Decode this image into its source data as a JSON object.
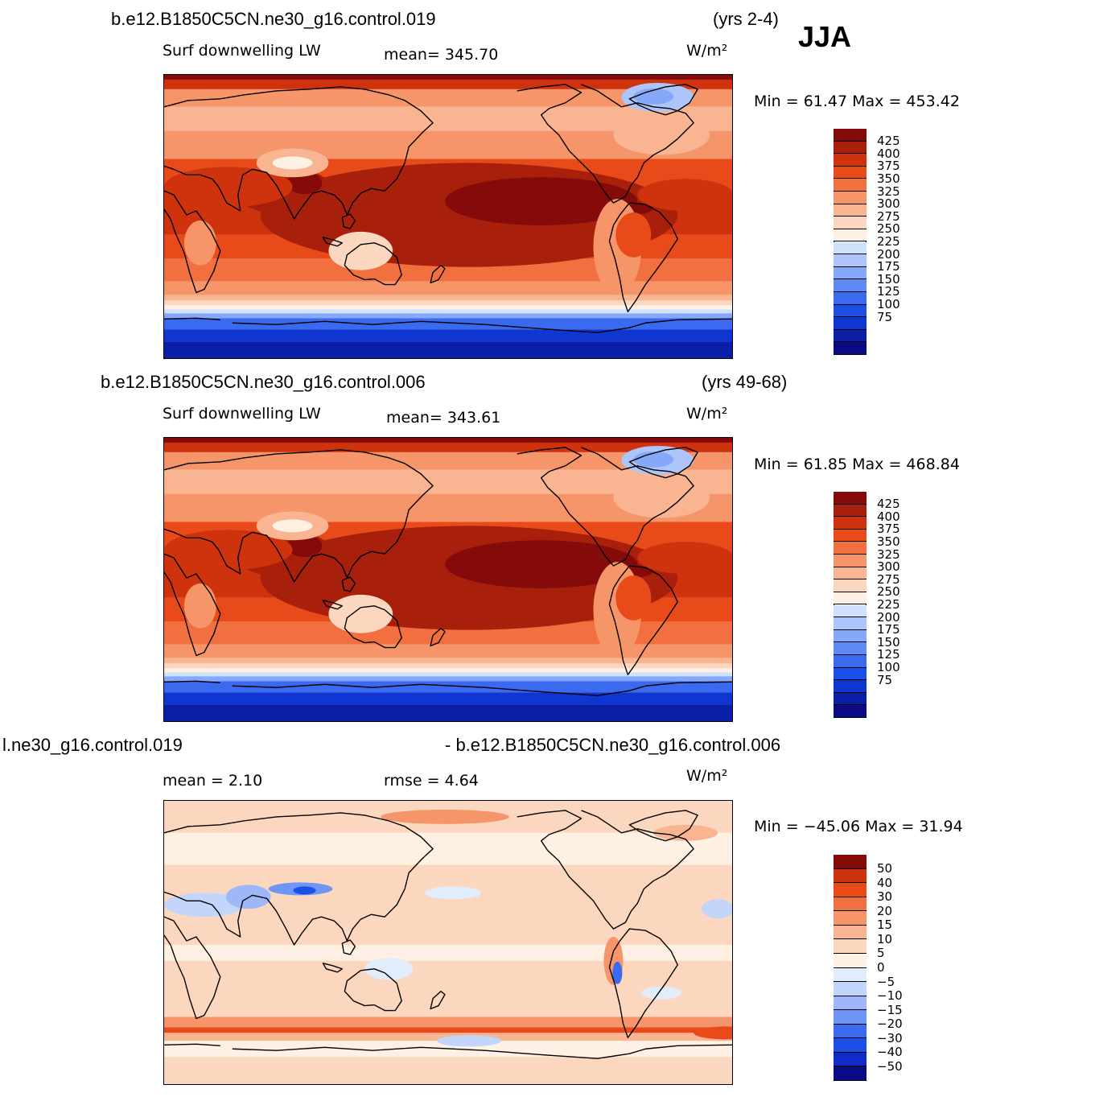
{
  "season": "JJA",
  "colors": {
    "abs": [
      "#0a0a85",
      "#0a1fa8",
      "#0f36d0",
      "#1a4fe8",
      "#3a6af0",
      "#5f8af5",
      "#86a8f8",
      "#adc5fa",
      "#d0e1fb",
      "#fff0e4",
      "#fcd7bf",
      "#f9b592",
      "#f6946a",
      "#f26f3f",
      "#e84a1a",
      "#cf330e",
      "#a8200b",
      "#850a0a"
    ],
    "diff": [
      "#0a0a85",
      "#0f2cc8",
      "#1a4fe8",
      "#3a6af0",
      "#6f95f5",
      "#9db7f9",
      "#c2d6fb",
      "#e2edfc",
      "#fff0e4",
      "#fcd7bf",
      "#f9b592",
      "#f6946a",
      "#f26f3f",
      "#e84a1a",
      "#cf330e",
      "#850a0a"
    ]
  },
  "panels": [
    {
      "case": "b.e12.B1850C5CN.ne30_g16.control.019",
      "years": "(yrs 2-4)",
      "variable": "Surf downwelling LW",
      "stat1": "mean=  345.70",
      "units": "W/m²",
      "minmax": "Min =   61.47  Max  =  453.42",
      "levels": [
        "425",
        "400",
        "375",
        "350",
        "325",
        "300",
        "275",
        "250",
        "225",
        "200",
        "175",
        "150",
        "125",
        "100",
        "75"
      ]
    },
    {
      "case": "b.e12.B1850C5CN.ne30_g16.control.006",
      "years": "(yrs 49-68)",
      "variable": "Surf downwelling LW",
      "stat1": "mean=  343.61",
      "units": "W/m²",
      "minmax": "Min =   61.85  Max  =  468.84",
      "levels": [
        "425",
        "400",
        "375",
        "350",
        "325",
        "300",
        "275",
        "250",
        "225",
        "200",
        "175",
        "150",
        "125",
        "100",
        "75"
      ]
    },
    {
      "case_left": "l.ne30_g16.control.019",
      "case_right": "- b.e12.B1850C5CN.ne30_g16.control.006",
      "stat1": "mean =     2.10",
      "stat2": "rmse =     4.64",
      "units": "W/m²",
      "minmax": "Min = −45.06  Max  =    31.94",
      "levels": [
        "50",
        "40",
        "30",
        "20",
        "15",
        "10",
        "5",
        "0",
        "−5",
        "−10",
        "−15",
        "−20",
        "−30",
        "−40",
        "−50"
      ]
    }
  ]
}
